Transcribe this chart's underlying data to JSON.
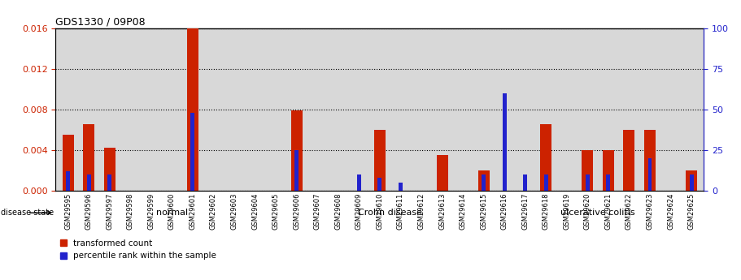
{
  "title": "GDS1330 / 09P08",
  "samples": [
    "GSM29595",
    "GSM29596",
    "GSM29597",
    "GSM29598",
    "GSM29599",
    "GSM29600",
    "GSM29601",
    "GSM29602",
    "GSM29603",
    "GSM29604",
    "GSM29605",
    "GSM29606",
    "GSM29607",
    "GSM29608",
    "GSM29609",
    "GSM29610",
    "GSM29611",
    "GSM29612",
    "GSM29613",
    "GSM29614",
    "GSM29615",
    "GSM29616",
    "GSM29617",
    "GSM29618",
    "GSM29619",
    "GSM29620",
    "GSM29621",
    "GSM29622",
    "GSM29623",
    "GSM29624",
    "GSM29625"
  ],
  "transformed_count": [
    0.0055,
    0.0065,
    0.0042,
    0.0,
    0.0,
    0.0,
    0.016,
    0.0,
    0.0,
    0.0,
    0.0,
    0.0079,
    0.0,
    0.0,
    0.0,
    0.006,
    0.0,
    0.0,
    0.0035,
    0.0,
    0.002,
    0.0,
    0.0,
    0.0065,
    0.0,
    0.004,
    0.004,
    0.006,
    0.006,
    0.0,
    0.002
  ],
  "percentile_rank": [
    12,
    10,
    10,
    0,
    0,
    0,
    48,
    0,
    0,
    0,
    0,
    25,
    0,
    0,
    10,
    8,
    5,
    0,
    0,
    0,
    10,
    60,
    10,
    10,
    0,
    10,
    10,
    0,
    20,
    0,
    10
  ],
  "groups": [
    {
      "name": "normal",
      "start": 0,
      "end": 10,
      "color": "#ccffcc"
    },
    {
      "name": "Crohn disease",
      "start": 11,
      "end": 20,
      "color": "#88ee88"
    },
    {
      "name": "ulcerative colitis",
      "start": 21,
      "end": 30,
      "color": "#44cc44"
    }
  ],
  "ylim_left": [
    0,
    0.016
  ],
  "ylim_right": [
    0,
    100
  ],
  "yticks_left": [
    0,
    0.004,
    0.008,
    0.012,
    0.016
  ],
  "yticks_right": [
    0,
    25,
    50,
    75,
    100
  ],
  "red_color": "#cc2200",
  "blue_color": "#2222cc",
  "bg_color": "#d8d8d8",
  "disease_state_label": "disease state"
}
